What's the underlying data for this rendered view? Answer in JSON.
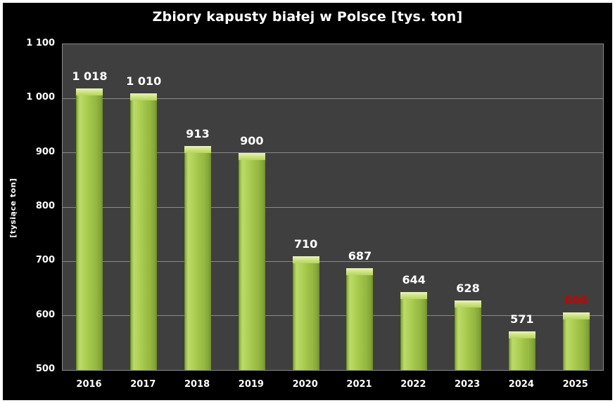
{
  "title": "Zbiory kapusty białej w Polsce [tys. ton]",
  "chart_data": {
    "type": "bar",
    "title": "Zbiory kapusty białej w Polsce [tys. ton]",
    "ylabel": "[tysiące ton]",
    "xlabel": "",
    "categories": [
      "2016",
      "2017",
      "2018",
      "2019",
      "2020",
      "2021",
      "2022",
      "2023",
      "2024",
      "2025"
    ],
    "values": [
      1018,
      1010,
      913,
      900,
      710,
      687,
      644,
      628,
      571,
      606
    ],
    "data_labels": [
      "1 018",
      "1 010",
      "913",
      "900",
      "710",
      "687",
      "644",
      "628",
      "571",
      "606"
    ],
    "data_label_colors": [
      "#ffffff",
      "#ffffff",
      "#ffffff",
      "#ffffff",
      "#ffffff",
      "#ffffff",
      "#ffffff",
      "#ffffff",
      "#ffffff",
      "#cc0000"
    ],
    "ylim": [
      500,
      1100
    ],
    "ytick_labels": [
      "1 100",
      "1 000",
      "900",
      "800",
      "700",
      "600",
      "500"
    ],
    "grid": true,
    "legend": "none",
    "colors": {
      "background": "#000000",
      "frame_border": "#ffffff",
      "plot_background": "#3f3f3f",
      "gridline": "#8a8a8a",
      "bar_body": "#a3c74b",
      "bar_highlight": "#bcdb69",
      "bar_cap": "#d2e68a",
      "text": "#ffffff",
      "highlight_value": "#cc0000"
    }
  }
}
